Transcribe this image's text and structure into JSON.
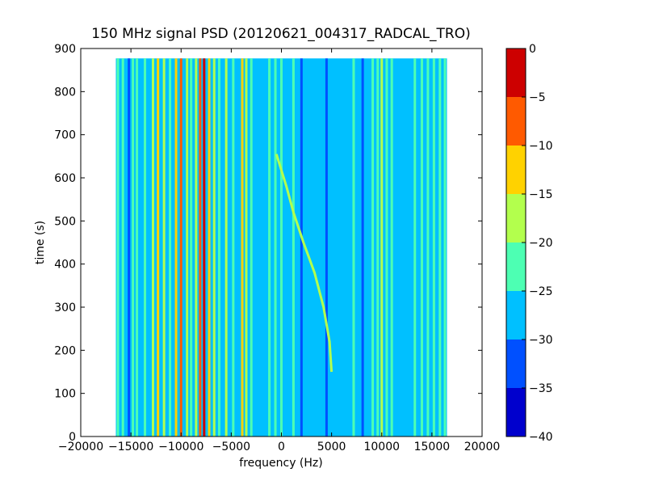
{
  "chart_data": {
    "type": "heatmap",
    "title": "150 MHz signal PSD (20120621_004317_RADCAL_TRO)",
    "xlabel": "frequency (Hz)",
    "ylabel": "time (s)",
    "xlim": [
      -20000,
      20000
    ],
    "ylim": [
      0,
      900
    ],
    "xticks": [
      -20000,
      -15000,
      -10000,
      -5000,
      0,
      5000,
      10000,
      15000,
      20000
    ],
    "yticks": [
      0,
      100,
      200,
      300,
      400,
      500,
      600,
      700,
      800,
      900
    ],
    "data_extent": {
      "freq": [
        -16500,
        16500
      ],
      "time": [
        0,
        877
      ]
    },
    "background_level": -27.5,
    "colorbar": {
      "levels": [
        -40,
        -35,
        -30,
        -25,
        -20,
        -15,
        -10,
        -5,
        0
      ],
      "colors": [
        "#0000cd",
        "#0050ff",
        "#00c0ff",
        "#4dffb3",
        "#b3ff4d",
        "#ffd200",
        "#ff5a00",
        "#cd0000"
      ]
    },
    "vertical_lines": [
      {
        "freq": -16300,
        "level": -22.5
      },
      {
        "freq": -15800,
        "level": -22.5
      },
      {
        "freq": -15200,
        "level": -32.5
      },
      {
        "freq": -14800,
        "level": -22.5
      },
      {
        "freq": -14400,
        "level": -22.5
      },
      {
        "freq": -13600,
        "level": -22.5
      },
      {
        "freq": -12800,
        "level": -17.5
      },
      {
        "freq": -12300,
        "level": -12.5
      },
      {
        "freq": -11700,
        "level": -17.5
      },
      {
        "freq": -11100,
        "level": -22.5
      },
      {
        "freq": -10500,
        "level": -12.5
      },
      {
        "freq": -10000,
        "level": -7.5
      },
      {
        "freq": -9400,
        "level": -17.5
      },
      {
        "freq": -9000,
        "level": -22.5
      },
      {
        "freq": -8500,
        "level": -17.5
      },
      {
        "freq": -8100,
        "level": -7.5
      },
      {
        "freq": -7700,
        "level": -2.5
      },
      {
        "freq": -7200,
        "level": -12.5
      },
      {
        "freq": -6700,
        "level": -17.5
      },
      {
        "freq": -6200,
        "level": -22.5
      },
      {
        "freq": -5500,
        "level": -17.5
      },
      {
        "freq": -4800,
        "level": -22.5
      },
      {
        "freq": -3900,
        "level": -12.5
      },
      {
        "freq": -3500,
        "level": -17.5
      },
      {
        "freq": -3000,
        "level": -22.5
      },
      {
        "freq": -1200,
        "level": -22.5
      },
      {
        "freq": -600,
        "level": -22.5
      },
      {
        "freq": 0,
        "level": -22.5
      },
      {
        "freq": 1200,
        "level": -22.5
      },
      {
        "freq": 2000,
        "level": -32.5
      },
      {
        "freq": 4500,
        "level": -32.5
      },
      {
        "freq": 7200,
        "level": -22.5
      },
      {
        "freq": 8100,
        "level": -32.5
      },
      {
        "freq": 9100,
        "level": -22.5
      },
      {
        "freq": 9600,
        "level": -22.5
      },
      {
        "freq": 10000,
        "level": -17.5
      },
      {
        "freq": 10500,
        "level": -22.5
      },
      {
        "freq": 11000,
        "level": -22.5
      },
      {
        "freq": 13300,
        "level": -22.5
      },
      {
        "freq": 14000,
        "level": -22.5
      },
      {
        "freq": 14600,
        "level": -22.5
      },
      {
        "freq": 15200,
        "level": -22.5
      },
      {
        "freq": 15800,
        "level": -22.5
      },
      {
        "freq": 16300,
        "level": -22.5
      }
    ],
    "drift_track": {
      "level": -17.5,
      "points": [
        {
          "freq": 5000,
          "time": 150
        },
        {
          "freq": 4800,
          "time": 220
        },
        {
          "freq": 4200,
          "time": 300
        },
        {
          "freq": 3300,
          "time": 380
        },
        {
          "freq": 2200,
          "time": 450
        },
        {
          "freq": 1200,
          "time": 520
        },
        {
          "freq": 500,
          "time": 580
        },
        {
          "freq": -500,
          "time": 655
        }
      ]
    }
  }
}
